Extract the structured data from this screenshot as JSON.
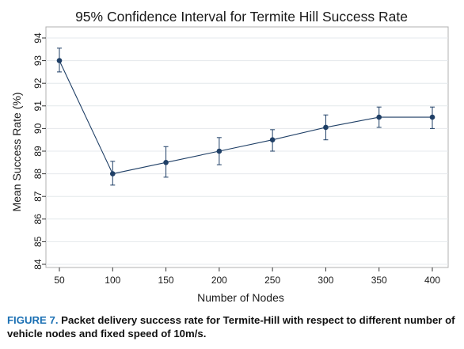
{
  "chart_data": {
    "type": "line",
    "title": "95% Confidence Interval for Termite Hill Success Rate",
    "xlabel": "Number of Nodes",
    "ylabel": "Mean Success Rate (%)",
    "x": [
      50,
      100,
      150,
      200,
      250,
      300,
      350,
      400
    ],
    "x_ticks": [
      "50",
      "100",
      "150",
      "200",
      "250",
      "300",
      "350",
      "400"
    ],
    "y_ticks": [
      "84",
      "85",
      "86",
      "87",
      "88",
      "89",
      "90",
      "91",
      "92",
      "93",
      "94"
    ],
    "xlim": [
      50,
      400
    ],
    "ylim": [
      84,
      94
    ],
    "grid": true,
    "series": [
      {
        "values": [
          93.0,
          88.0,
          88.5,
          89.0,
          89.5,
          90.05,
          90.5,
          90.5
        ],
        "ci_low": [
          92.5,
          87.5,
          87.85,
          88.4,
          89.0,
          89.5,
          90.05,
          90.0
        ],
        "ci_high": [
          93.55,
          88.55,
          89.2,
          89.6,
          89.95,
          90.6,
          90.95,
          90.95
        ]
      }
    ],
    "colors": {
      "line": "#1f3f66",
      "marker": "#1f3f66",
      "grid": "#e4e8ec",
      "plot_border": "#b0b0b0"
    }
  },
  "caption": {
    "label": "FIGURE 7.",
    "text": "Packet delivery success rate for Termite-Hill with respect to different number of vehicle nodes and fixed speed of 10m/s."
  }
}
